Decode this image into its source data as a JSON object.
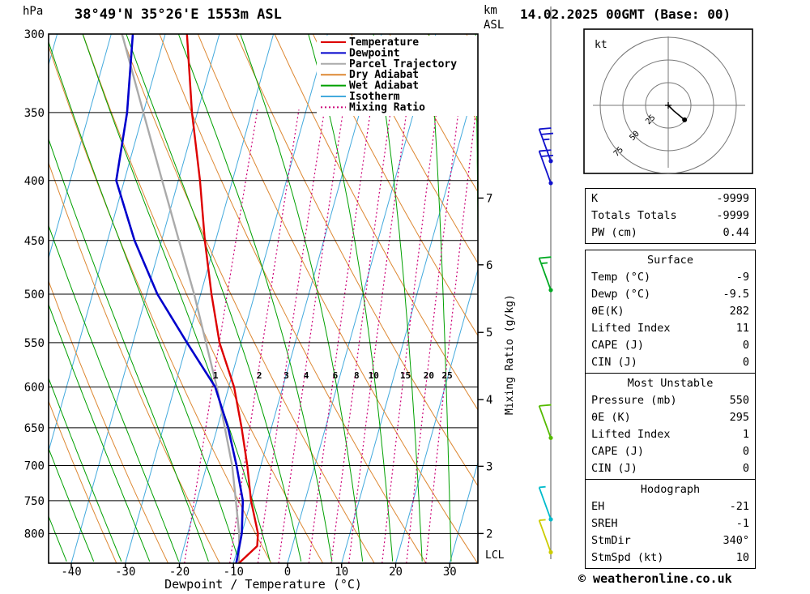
{
  "header": {
    "hpa": "hPa",
    "km": "km",
    "asl": "ASL",
    "title": "38°49'N 35°26'E 1553m ASL",
    "date": "14.02.2025 00GMT (Base: 00)"
  },
  "footer": {
    "copyright": "© weatheronline.co.uk"
  },
  "axes": {
    "xlabel": "Dewpoint / Temperature (°C)",
    "x_ticks": [
      -40,
      -30,
      -20,
      -10,
      0,
      10,
      20,
      30
    ],
    "pressure_ticks": [
      300,
      350,
      400,
      450,
      500,
      550,
      600,
      650,
      700,
      750,
      800
    ],
    "km_ticks": [
      {
        "km": "7",
        "p": 414
      },
      {
        "km": "6",
        "p": 472
      },
      {
        "km": "5",
        "p": 539
      },
      {
        "km": "4",
        "p": 615
      },
      {
        "km": "3",
        "p": 701
      },
      {
        "km": "2",
        "p": 800
      }
    ],
    "lcl": {
      "label": "LCL",
      "p": 833
    },
    "mixing_axis_label": "Mixing Ratio (g/kg)"
  },
  "legend": [
    {
      "label": "Temperature",
      "color": "#dd0000",
      "dash": ""
    },
    {
      "label": "Dewpoint",
      "color": "#0000cc",
      "dash": ""
    },
    {
      "label": "Parcel Trajectory",
      "color": "#aaaaaa",
      "dash": ""
    },
    {
      "label": "Dry Adiabat",
      "color": "#dd8833",
      "dash": ""
    },
    {
      "label": "Wet Adiabat",
      "color": "#00a000",
      "dash": ""
    },
    {
      "label": "Isotherm",
      "color": "#44aadd",
      "dash": ""
    },
    {
      "label": "Mixing Ratio",
      "color": "#cc0077",
      "dash": "2,3"
    }
  ],
  "chart_data": {
    "type": "line",
    "title": "Skew-T log-P sounding",
    "xlabel": "Dewpoint / Temperature (°C)",
    "x_range": [
      -45,
      35
    ],
    "pressure_range_hpa": [
      300,
      848
    ],
    "grid": true,
    "temperature_profile": {
      "pressure": [
        848,
        820,
        800,
        750,
        700,
        650,
        600,
        550,
        500,
        450,
        400,
        350,
        300
      ],
      "celsius": [
        -9,
        -6.5,
        -7,
        -10,
        -12.5,
        -15.5,
        -19,
        -24,
        -28,
        -32,
        -36,
        -41,
        -46
      ]
    },
    "dewpoint_profile": {
      "pressure": [
        848,
        800,
        750,
        700,
        650,
        600,
        550,
        500,
        450,
        400,
        350,
        300
      ],
      "celsius": [
        -9.5,
        -10,
        -11.5,
        -14.5,
        -18,
        -22.5,
        -30,
        -38,
        -45,
        -51.5,
        -53,
        -56
      ]
    },
    "parcel_profile": {
      "pressure": [
        848,
        800,
        750,
        700,
        650,
        600,
        550,
        500,
        450,
        400,
        350,
        300
      ],
      "celsius": [
        -9,
        -10.5,
        -12.8,
        -15.3,
        -18.6,
        -22.2,
        -26.5,
        -31.2,
        -36.8,
        -43,
        -50,
        -58
      ]
    },
    "mixing_ratio_lines": [
      1,
      2,
      3,
      4,
      6,
      8,
      10,
      15,
      20,
      25
    ],
    "isotherms": {
      "start": -120,
      "end": 40,
      "step": 10
    },
    "dry_adiabats": {
      "start_c": -20,
      "end_c": 170,
      "step": 10
    },
    "wet_adiabats": {
      "start_c": -55,
      "end_c": 45,
      "step": 5
    },
    "wind_dir_deg": 340,
    "wind_barbs": [
      {
        "p": 385,
        "color": "#1111cc",
        "full": 2,
        "half": 1
      },
      {
        "p": 402,
        "color": "#1111cc",
        "full": 2,
        "half": 0
      },
      {
        "p": 496,
        "color": "#00aa22",
        "full": 1,
        "half": 1
      },
      {
        "p": 663,
        "color": "#55bb00",
        "full": 1,
        "half": 0
      },
      {
        "p": 778,
        "color": "#00bbcc",
        "full": 0,
        "half": 1
      },
      {
        "p": 830,
        "color": "#cccc00",
        "full": 0,
        "half": 1
      }
    ],
    "colors": {
      "temperature": "#dd0000",
      "dewpoint": "#0000cc",
      "parcel": "#aaaaaa",
      "dry_adiabat": "#dd8833",
      "wet_adiabat": "#00a000",
      "isotherm": "#44aadd",
      "mixing_ratio": "#cc0077",
      "pressure_line": "#000000"
    }
  },
  "hodograph": {
    "unit": "kt",
    "rings": [
      "25",
      "50",
      "75"
    ],
    "ring_kt": [
      25,
      50,
      75
    ],
    "trace_kt": [
      [
        0,
        0
      ],
      [
        6,
        6
      ],
      [
        12,
        11
      ],
      [
        18,
        16
      ]
    ],
    "dot_kt": [
      18,
      16
    ]
  },
  "panel": {
    "indices": {
      "rows": [
        [
          "K",
          "-9999"
        ],
        [
          "Totals Totals",
          "-9999"
        ],
        [
          "PW (cm)",
          "0.44"
        ]
      ]
    },
    "surface": {
      "title": "Surface",
      "rows": [
        [
          "Temp (°C)",
          "-9"
        ],
        [
          "Dewp (°C)",
          "-9.5"
        ],
        [
          "θE(K)",
          "282"
        ],
        [
          "Lifted Index",
          "11"
        ],
        [
          "CAPE (J)",
          "0"
        ],
        [
          "CIN (J)",
          "0"
        ]
      ]
    },
    "most_unstable": {
      "title": "Most Unstable",
      "rows": [
        [
          "Pressure (mb)",
          "550"
        ],
        [
          "θE (K)",
          "295"
        ],
        [
          "Lifted Index",
          "1"
        ],
        [
          "CAPE (J)",
          "0"
        ],
        [
          "CIN (J)",
          "0"
        ]
      ]
    },
    "hodograph_stats": {
      "title": "Hodograph",
      "rows": [
        [
          "EH",
          "-21"
        ],
        [
          "SREH",
          "-1"
        ],
        [
          "StmDir",
          "340°"
        ],
        [
          "StmSpd (kt)",
          "10"
        ]
      ]
    }
  }
}
